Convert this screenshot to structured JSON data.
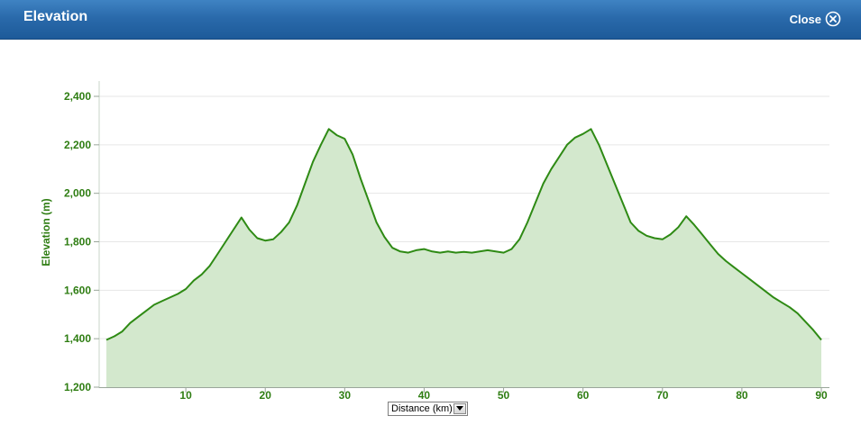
{
  "dialog": {
    "title": "Elevation",
    "close_label": "Close"
  },
  "unit_selector": {
    "selected": "Distance (km)"
  },
  "colors": {
    "header": "#2a6aab",
    "line": "#2e8a14",
    "fill": "#d3e8cd",
    "axis_text": "#2e7d12"
  },
  "icons": {
    "close": "circle-x-icon",
    "dropdown": "triangle-down-icon"
  },
  "chart_data": {
    "type": "area",
    "title": "",
    "xlabel": "",
    "ylabel": "Elevation (m)",
    "xlim": [
      0,
      90
    ],
    "ylim": [
      1200,
      2400
    ],
    "xticks": [
      10,
      20,
      30,
      40,
      50,
      60,
      70,
      80,
      90
    ],
    "yticks": [
      1200,
      1400,
      1600,
      1800,
      2000,
      2200,
      2400
    ],
    "xtick_labels": [
      "10",
      "20",
      "30",
      "40",
      "50",
      "60",
      "70",
      "80",
      "90"
    ],
    "ytick_labels": [
      "1,200",
      "1,400",
      "1,600",
      "1,800",
      "2,000",
      "2,200",
      "2,400"
    ],
    "grid": true,
    "series": [
      {
        "x": [
          0,
          1,
          2,
          3,
          4,
          5,
          6,
          7,
          8,
          9,
          10,
          11,
          12,
          13,
          14,
          15,
          16,
          17,
          18,
          19,
          20,
          21,
          22,
          23,
          24,
          25,
          26,
          27,
          28,
          29,
          30,
          31,
          32,
          33,
          34,
          35,
          36,
          37,
          38,
          39,
          40,
          41,
          42,
          43,
          44,
          45,
          46,
          47,
          48,
          49,
          50,
          51,
          52,
          53,
          54,
          55,
          56,
          57,
          58,
          59,
          60,
          61,
          62,
          63,
          64,
          65,
          66,
          67,
          68,
          69,
          70,
          71,
          72,
          73,
          74,
          75,
          76,
          77,
          78,
          79,
          80,
          81,
          82,
          83,
          84,
          85,
          86,
          87,
          88,
          89,
          90
        ],
        "y": [
          1395,
          1410,
          1430,
          1465,
          1490,
          1515,
          1540,
          1555,
          1570,
          1585,
          1605,
          1640,
          1665,
          1700,
          1750,
          1800,
          1850,
          1900,
          1850,
          1815,
          1805,
          1810,
          1840,
          1880,
          1950,
          2040,
          2130,
          2200,
          2265,
          2240,
          2225,
          2160,
          2060,
          1970,
          1880,
          1820,
          1775,
          1760,
          1755,
          1765,
          1770,
          1760,
          1755,
          1760,
          1755,
          1758,
          1755,
          1760,
          1765,
          1760,
          1755,
          1770,
          1810,
          1880,
          1960,
          2040,
          2100,
          2150,
          2200,
          2230,
          2245,
          2265,
          2200,
          2120,
          2040,
          1960,
          1880,
          1845,
          1825,
          1815,
          1810,
          1830,
          1860,
          1905,
          1870,
          1830,
          1790,
          1750,
          1720,
          1695,
          1670,
          1645,
          1620,
          1595,
          1570,
          1550,
          1530,
          1505,
          1470,
          1435,
          1395
        ]
      }
    ]
  }
}
